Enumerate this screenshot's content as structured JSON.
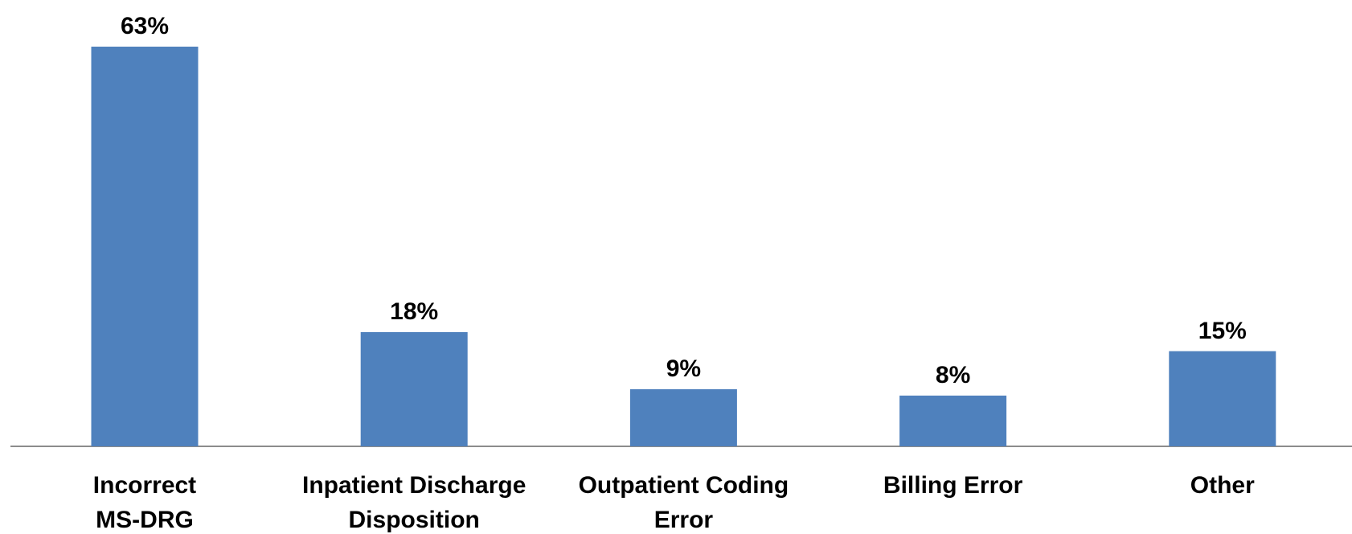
{
  "chart_data": {
    "type": "bar",
    "categories": [
      "Incorrect\nMS-DRG",
      "Inpatient Discharge\nDisposition",
      "Outpatient Coding\nError",
      "Billing Error",
      "Other"
    ],
    "values": [
      63,
      18,
      9,
      8,
      15
    ],
    "value_labels": [
      "63%",
      "18%",
      "9%",
      "8%",
      "15%"
    ],
    "color": "#4f81bd"
  }
}
